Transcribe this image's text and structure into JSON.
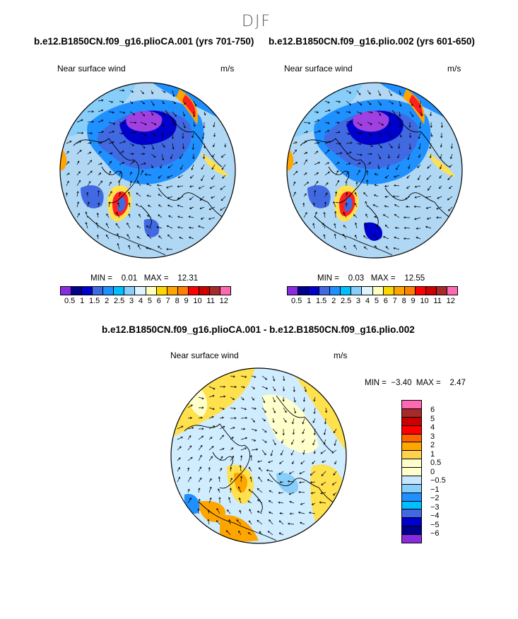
{
  "figure_title": "DJF",
  "panels": [
    {
      "title": "b.e12.B1850CN.f09_g16.plioCA.001 (yrs 701-750)",
      "left_label": "Near surface wind",
      "right_label": "m/s",
      "min_label": "MIN =",
      "min_value": "0.01",
      "max_label": "MAX =",
      "max_value": "12.31"
    },
    {
      "title": "b.e12.B1850CN.f09_g16.plio.002 (yrs 601-650)",
      "left_label": "Near surface wind",
      "right_label": "m/s",
      "min_label": "MIN =",
      "min_value": "0.03",
      "max_label": "MAX =",
      "max_value": "12.55"
    },
    {
      "title": "b.e12.B1850CN.f09_g16.plioCA.001 - b.e12.B1850CN.f09_g16.plio.002",
      "left_label": "Near surface wind",
      "right_label": "m/s",
      "min_label": "MIN =",
      "min_value": "−3.40",
      "max_label": "MAX =",
      "max_value": "2.47"
    }
  ],
  "colorbar_abs": {
    "colors": [
      "#8a2be2",
      "#00008b",
      "#0000cd",
      "#4169e1",
      "#1e90ff",
      "#00bfff",
      "#87cefa",
      "#e0f4ff",
      "#ffffc0",
      "#ffd700",
      "#ffa500",
      "#ff7f00",
      "#ff0000",
      "#cc0000",
      "#a52a2a",
      "#ff69b4"
    ],
    "tick_labels": [
      "0.5",
      "1",
      "1.5",
      "2",
      "2.5",
      "3",
      "4",
      "5",
      "6",
      "7",
      "8",
      "9",
      "10",
      "11",
      "12"
    ]
  },
  "colorbar_diff": {
    "colors": [
      "#ff69b4",
      "#a52a2a",
      "#cc0000",
      "#ff0000",
      "#ff6600",
      "#ffa500",
      "#ffd24d",
      "#ffffcc",
      "#ffffcc",
      "#c6e6ff",
      "#87cefa",
      "#1e90ff",
      "#00bfff",
      "#4169e1",
      "#0000cd",
      "#00008b",
      "#8a2be2"
    ],
    "tick_labels": [
      "6",
      "5",
      "4",
      "3",
      "2",
      "1",
      "0.5",
      "0",
      "−0.5",
      "−1",
      "−2",
      "−3",
      "−4",
      "−5",
      "−6"
    ]
  },
  "map_colors": {
    "ocean_light": "#b0d8f5",
    "ocean_mid": "#87cefa",
    "blue": "#1e90ff",
    "royal": "#4169e1",
    "navy": "#0000cd",
    "purple": "#a040e0",
    "yellow": "#ffe04d",
    "orange": "#ffa500",
    "red": "#ff2020",
    "pale_yellow": "#ffffcc",
    "pale_blue": "#d0ecff"
  }
}
